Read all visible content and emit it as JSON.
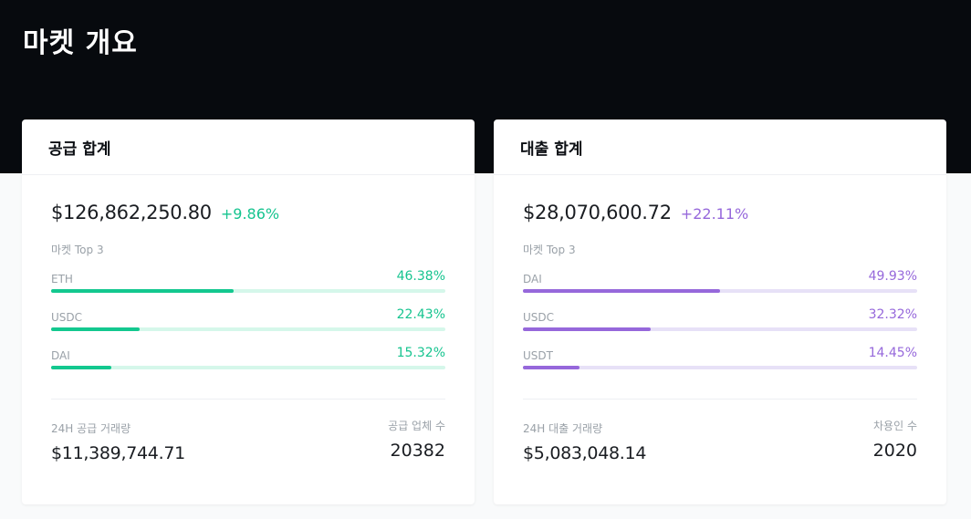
{
  "page": {
    "title": "마켓 개요"
  },
  "colors": {
    "supply_accent": "#13c88f",
    "borrow_accent": "#9668db",
    "hero_bg": "#070a0e"
  },
  "supply": {
    "title": "공급 합계",
    "total": "$126,862,250.80",
    "change": "+9.86%",
    "top_label": "마켓 Top 3",
    "markets": [
      {
        "name": "ETH",
        "pct": "46.38%",
        "fraction": 0.4638
      },
      {
        "name": "USDC",
        "pct": "22.43%",
        "fraction": 0.2243
      },
      {
        "name": "DAI",
        "pct": "15.32%",
        "fraction": 0.1532
      }
    ],
    "volume_label": "24H 공급 거래량",
    "volume": "$11,389,744.71",
    "count_label": "공급 업체 수",
    "count": "20382"
  },
  "borrow": {
    "title": "대출 합계",
    "total": "$28,070,600.72",
    "change": "+22.11%",
    "top_label": "마켓 Top 3",
    "markets": [
      {
        "name": "DAI",
        "pct": "49.93%",
        "fraction": 0.4993
      },
      {
        "name": "USDC",
        "pct": "32.32%",
        "fraction": 0.3232
      },
      {
        "name": "USDT",
        "pct": "14.45%",
        "fraction": 0.1445
      }
    ],
    "volume_label": "24H 대출 거래량",
    "volume": "$5,083,048.14",
    "count_label": "차용인 수",
    "count": "2020"
  }
}
